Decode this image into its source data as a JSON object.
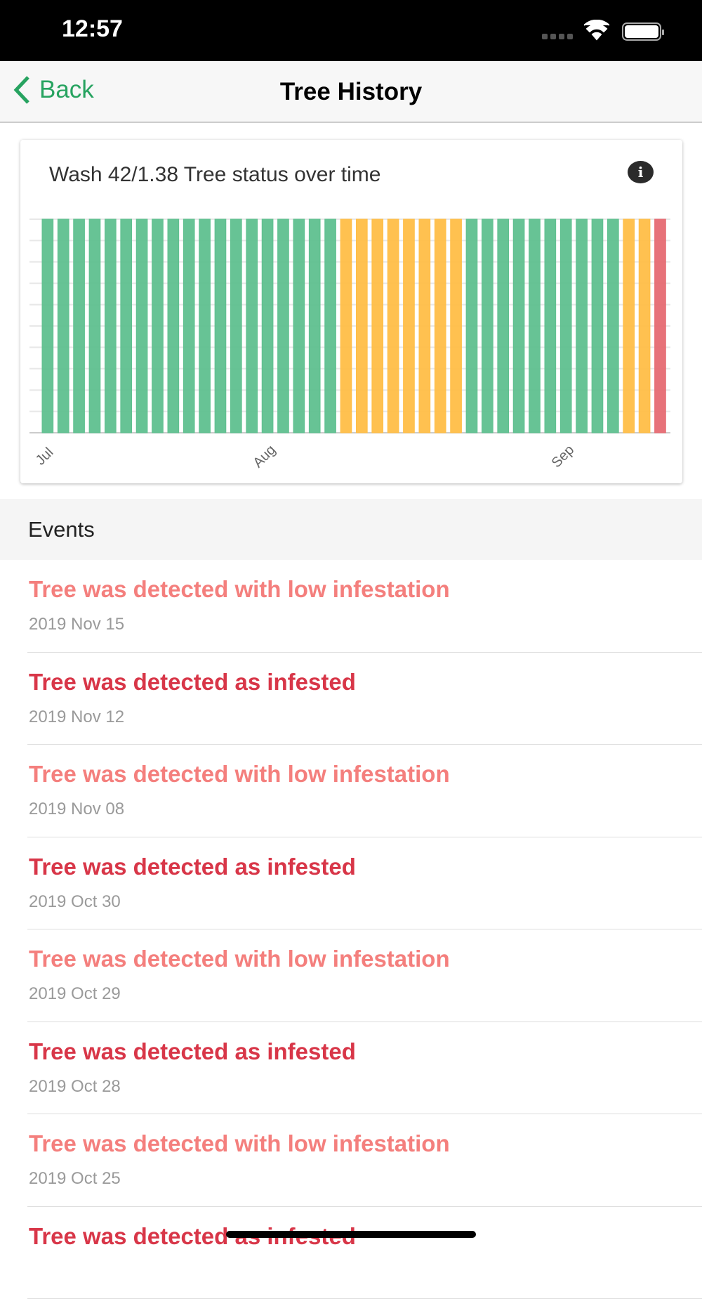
{
  "status_bar": {
    "time": "12:57"
  },
  "nav": {
    "back_label": "Back",
    "title": "Tree History"
  },
  "card": {
    "title": "Wash 42/1.38 Tree status over time",
    "info_icon": "info-icon"
  },
  "chart_data": {
    "type": "bar",
    "title": "Wash 42/1.38 Tree status over time",
    "x_tick_labels": [
      "Jul",
      "Aug",
      "Sep"
    ],
    "x_tick_bar_index": [
      0,
      14,
      33
    ],
    "ylim": [
      0,
      1
    ],
    "grid": true,
    "colors": {
      "healthy": "#5fc08f",
      "low": "#ffbe47",
      "infested": "#e66a72"
    },
    "values": [
      1,
      1,
      1,
      1,
      1,
      1,
      1,
      1,
      1,
      1,
      1,
      1,
      1,
      1,
      1,
      1,
      1,
      1,
      1,
      1,
      1,
      1,
      1,
      1,
      1,
      1,
      1,
      1,
      1,
      1,
      1,
      1,
      1,
      1,
      1,
      1,
      1,
      1,
      1,
      1
    ],
    "statuses": [
      "healthy",
      "healthy",
      "healthy",
      "healthy",
      "healthy",
      "healthy",
      "healthy",
      "healthy",
      "healthy",
      "healthy",
      "healthy",
      "healthy",
      "healthy",
      "healthy",
      "healthy",
      "healthy",
      "healthy",
      "healthy",
      "healthy",
      "low",
      "low",
      "low",
      "low",
      "low",
      "low",
      "low",
      "low",
      "healthy",
      "healthy",
      "healthy",
      "healthy",
      "healthy",
      "healthy",
      "healthy",
      "healthy",
      "healthy",
      "healthy",
      "low",
      "low",
      "infested"
    ]
  },
  "events": {
    "header": "Events",
    "items": [
      {
        "title": "Tree was detected with low infestation",
        "date": "2019 Nov 15",
        "level": "low"
      },
      {
        "title": "Tree was detected as infested",
        "date": "2019 Nov 12",
        "level": "inf"
      },
      {
        "title": "Tree was detected with low infestation",
        "date": "2019 Nov 08",
        "level": "low"
      },
      {
        "title": "Tree was detected as infested",
        "date": "2019 Oct 30",
        "level": "inf"
      },
      {
        "title": "Tree was detected with low infestation",
        "date": "2019 Oct 29",
        "level": "low"
      },
      {
        "title": "Tree was detected as infested",
        "date": "2019 Oct 28",
        "level": "inf"
      },
      {
        "title": "Tree was detected with low infestation",
        "date": "2019 Oct 25",
        "level": "low"
      },
      {
        "title": "Tree was detected as infested",
        "date": "",
        "level": "inf"
      }
    ]
  }
}
